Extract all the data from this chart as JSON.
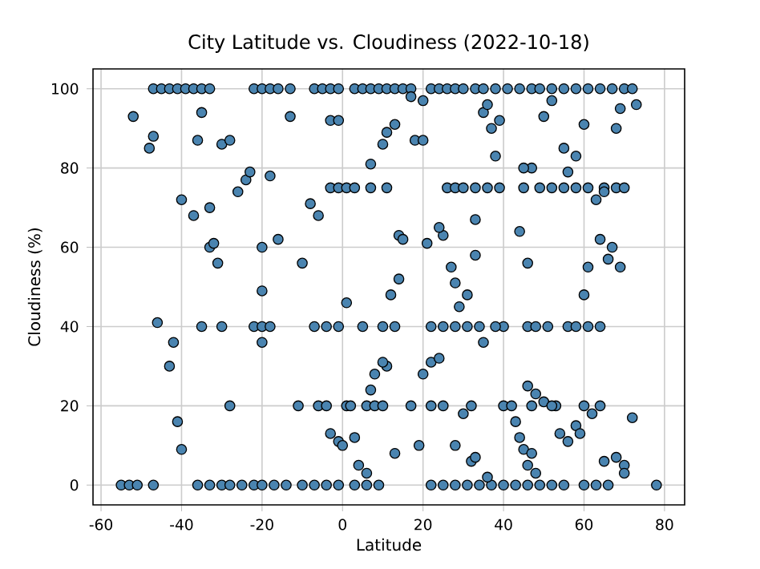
{
  "chart_data": {
    "type": "scatter",
    "title": "City Latitude vs. Cloudiness (2022-10-18)",
    "xlabel": "Latitude",
    "ylabel": "Cloudiness (%)",
    "xlim": [
      -62,
      85
    ],
    "ylim": [
      -5,
      105
    ],
    "xticks": [
      -60,
      -40,
      -20,
      0,
      20,
      40,
      60,
      80
    ],
    "yticks": [
      0,
      20,
      40,
      60,
      80,
      100
    ],
    "grid": true,
    "marker": "circle",
    "series": [
      {
        "color": "#4a84b0",
        "x": [
          -47,
          -45,
          -43,
          -41,
          -39,
          -37,
          -35,
          -33,
          -22,
          -20,
          -18,
          -16,
          -13,
          -7,
          -5,
          -3,
          -1,
          3,
          5,
          7,
          9,
          11,
          13,
          15,
          17,
          22,
          24,
          26,
          28,
          30,
          33,
          35,
          38,
          41,
          44,
          47,
          49,
          52,
          55,
          58,
          61,
          64,
          67,
          70,
          72,
          -55,
          -53,
          -51,
          -47,
          -36,
          -33,
          -30,
          -28,
          -25,
          -22,
          -20,
          -17,
          -14,
          -10,
          -7,
          -4,
          -1,
          3,
          6,
          9,
          22,
          25,
          28,
          31,
          34,
          37,
          40,
          43,
          46,
          49,
          52,
          55,
          60,
          63,
          66,
          78,
          26,
          28,
          30,
          33,
          36,
          39,
          45,
          49,
          52,
          55,
          58,
          61,
          65,
          68,
          70,
          -3,
          -1,
          1,
          3,
          7,
          11,
          -30,
          -35,
          -22,
          -20,
          -18,
          -7,
          -4,
          -1,
          5,
          10,
          13,
          22,
          25,
          28,
          31,
          34,
          40,
          46,
          48,
          51,
          56,
          58,
          61,
          64,
          -28,
          -11,
          -6,
          -4,
          1,
          2,
          6,
          8,
          10,
          17,
          22,
          25,
          32,
          40,
          47,
          53,
          60,
          64,
          -52,
          -47,
          -48,
          -46,
          -43,
          -42,
          -41,
          -40,
          -40,
          -37,
          -36,
          -35,
          -33,
          -33,
          -32,
          -31,
          -30,
          -28,
          -26,
          -24,
          -23,
          -20,
          -20,
          -20,
          -18,
          -16,
          -13,
          -10,
          -8,
          -6,
          -3,
          -1,
          1,
          -3,
          -1,
          0,
          3,
          4,
          6,
          7,
          10,
          11,
          13,
          14,
          12,
          14,
          11,
          8,
          10,
          7,
          13,
          15,
          17,
          18,
          20,
          20,
          21,
          25,
          24,
          27,
          28,
          29,
          31,
          33,
          33,
          35,
          36,
          37,
          38,
          39,
          43,
          44,
          45,
          46,
          47,
          48,
          46,
          48,
          50,
          52,
          54,
          56,
          58,
          59,
          62,
          65,
          68,
          70,
          70,
          72,
          60,
          61,
          63,
          64,
          65,
          66,
          67,
          69,
          68,
          69,
          73,
          58,
          56,
          60,
          55,
          50,
          52,
          47,
          45,
          44,
          46,
          42,
          35,
          38,
          22,
          24,
          20,
          19,
          30,
          28,
          32,
          33,
          36
        ],
        "values": [
          100,
          100,
          100,
          100,
          100,
          100,
          100,
          100,
          100,
          100,
          100,
          100,
          100,
          100,
          100,
          100,
          100,
          100,
          100,
          100,
          100,
          100,
          100,
          100,
          100,
          100,
          100,
          100,
          100,
          100,
          100,
          100,
          100,
          100,
          100,
          100,
          100,
          100,
          100,
          100,
          100,
          100,
          100,
          100,
          100,
          0,
          0,
          0,
          0,
          0,
          0,
          0,
          0,
          0,
          0,
          0,
          0,
          0,
          0,
          0,
          0,
          0,
          0,
          0,
          0,
          0,
          0,
          0,
          0,
          0,
          0,
          0,
          0,
          0,
          0,
          0,
          0,
          0,
          0,
          0,
          0,
          75,
          75,
          75,
          75,
          75,
          75,
          75,
          75,
          75,
          75,
          75,
          75,
          75,
          75,
          75,
          75,
          75,
          75,
          75,
          75,
          75,
          40,
          40,
          40,
          40,
          40,
          40,
          40,
          40,
          40,
          40,
          40,
          40,
          40,
          40,
          40,
          40,
          40,
          40,
          40,
          40,
          40,
          40,
          40,
          40,
          20,
          20,
          20,
          20,
          20,
          20,
          20,
          20,
          20,
          20,
          20,
          20,
          20,
          20,
          20,
          20,
          20,
          20,
          93,
          88,
          85,
          41,
          30,
          36,
          16,
          9,
          72,
          68,
          87,
          94,
          70,
          60,
          61,
          56,
          86,
          87,
          74,
          77,
          79,
          60,
          49,
          36,
          78,
          62,
          93,
          56,
          71,
          68,
          92,
          92,
          46,
          13,
          11,
          10,
          12,
          5,
          3,
          81,
          86,
          89,
          91,
          63,
          48,
          52,
          30,
          28,
          31,
          24,
          8,
          62,
          98,
          87,
          87,
          97,
          61,
          63,
          65,
          55,
          51,
          45,
          48,
          67,
          58,
          94,
          96,
          90,
          83,
          92,
          16,
          12,
          9,
          5,
          8,
          3,
          25,
          23,
          21,
          20,
          13,
          11,
          15,
          13,
          18,
          6,
          7,
          5,
          3,
          17,
          48,
          55,
          72,
          62,
          74,
          57,
          60,
          55,
          90,
          95,
          96,
          83,
          79,
          91,
          85,
          93,
          97,
          80,
          80,
          64,
          56,
          20,
          36,
          40,
          31,
          32,
          28,
          10,
          18,
          10,
          6,
          7,
          2
        ]
      }
    ]
  }
}
